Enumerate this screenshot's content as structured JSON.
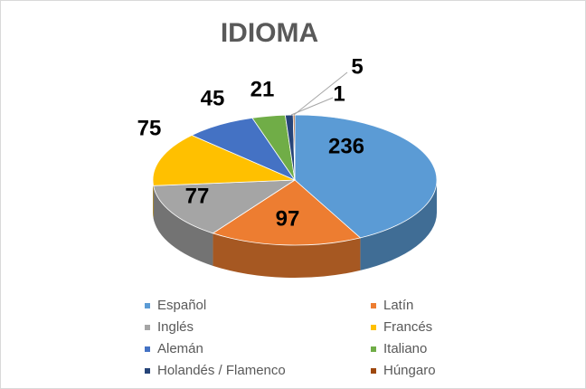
{
  "chart_data": {
    "type": "pie3d",
    "title": "IDIOMA",
    "categories": [
      "Español",
      "Latín",
      "Inglés",
      "Francés",
      "Alemán",
      "Italiano",
      "Holandés / Flamenco",
      "Húngaro"
    ],
    "values": [
      236,
      97,
      77,
      75,
      45,
      21,
      5,
      1
    ],
    "colors": [
      "#5b9bd5",
      "#ed7d31",
      "#a5a5a5",
      "#ffc000",
      "#4472c4",
      "#70ad47",
      "#264478",
      "#9e480e"
    ]
  }
}
